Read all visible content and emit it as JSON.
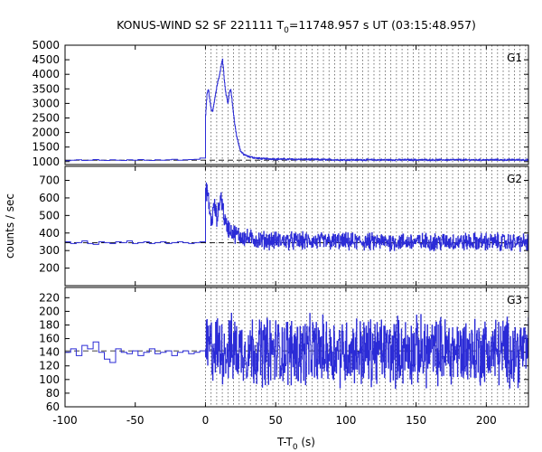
{
  "chart_data": {
    "type": "line",
    "title": "KONUS-WIND S2 SF 221111 T",
    "title_subscript": "0",
    "title_rest": "=11748.957 s UT (03:15:48.957)",
    "xlabel": "T-T",
    "xlabel_subscript": "0",
    "xlabel_unit": " (s)",
    "ylabel": "counts / sec",
    "xlim": [
      -100,
      230
    ],
    "xticks": [
      -100,
      -50,
      0,
      50,
      100,
      150,
      200
    ],
    "xtick_labels": [
      "-100",
      "-50",
      "0",
      "50",
      "100",
      "150",
      "200"
    ],
    "vline_positions": [
      0,
      4,
      8,
      12,
      16,
      20,
      24,
      28,
      32,
      36,
      40,
      44,
      48,
      52,
      56,
      60,
      64,
      68,
      72,
      76,
      80,
      84,
      88,
      92,
      96,
      100,
      104,
      108,
      112,
      116,
      120,
      124,
      128,
      132,
      136,
      140,
      144,
      148,
      152,
      156,
      160,
      164,
      168,
      172,
      176,
      180,
      184,
      188,
      192,
      196,
      200,
      204,
      208,
      212,
      216,
      220,
      224,
      228
    ],
    "line_color": "#2b2bd6",
    "panels": [
      {
        "name": "G1",
        "ylim": [
          900,
          5000
        ],
        "yticks": [
          1000,
          1500,
          2000,
          2500,
          3000,
          3500,
          4000,
          4500,
          5000
        ],
        "ytick_labels": [
          "1000",
          "1500",
          "2000",
          "2500",
          "3000",
          "3500",
          "4000",
          "4500",
          "5000"
        ],
        "background": 1050,
        "coarse_values": [
          1030,
          1050,
          1060,
          1040,
          1050,
          1070,
          1050,
          1040,
          1060,
          1050,
          1040,
          1060,
          1050,
          1070,
          1050,
          1040,
          1060,
          1050,
          1060,
          1080,
          1050,
          1060,
          1070,
          1080,
          1120
        ],
        "fine_points": [
          [
            0,
            2600
          ],
          [
            1,
            3300
          ],
          [
            2,
            3500
          ],
          [
            3,
            3100
          ],
          [
            4,
            2800
          ],
          [
            5,
            2700
          ],
          [
            6,
            3000
          ],
          [
            7,
            3300
          ],
          [
            8,
            3600
          ],
          [
            9,
            3800
          ],
          [
            10,
            4000
          ],
          [
            11,
            4300
          ],
          [
            12,
            4500
          ],
          [
            13,
            4000
          ],
          [
            14,
            3500
          ],
          [
            15,
            3200
          ],
          [
            16,
            3000
          ],
          [
            17,
            3400
          ],
          [
            18,
            3500
          ],
          [
            19,
            3000
          ],
          [
            20,
            2600
          ],
          [
            21,
            2200
          ],
          [
            22,
            1900
          ],
          [
            23,
            1700
          ],
          [
            24,
            1500
          ],
          [
            25,
            1350
          ],
          [
            27,
            1250
          ],
          [
            30,
            1180
          ],
          [
            35,
            1130
          ],
          [
            40,
            1100
          ],
          [
            50,
            1090
          ],
          [
            60,
            1080
          ],
          [
            80,
            1070
          ],
          [
            100,
            1060
          ],
          [
            130,
            1060
          ],
          [
            160,
            1060
          ],
          [
            200,
            1060
          ],
          [
            230,
            1060
          ]
        ],
        "noise_amp": 35
      },
      {
        "name": "G2",
        "ylim": [
          100,
          780
        ],
        "yticks": [
          200,
          300,
          400,
          500,
          600,
          700
        ],
        "ytick_labels": [
          "200",
          "300",
          "400",
          "500",
          "600",
          "700"
        ],
        "background": 345,
        "coarse_values": [
          350,
          340,
          345,
          355,
          340,
          335,
          350,
          345,
          340,
          350,
          345,
          355,
          340,
          345,
          350,
          340,
          345,
          350,
          340,
          345,
          350,
          345,
          340,
          345,
          350
        ],
        "fine_points": [
          [
            0,
            600
          ],
          [
            1,
            660
          ],
          [
            2,
            580
          ],
          [
            3,
            520
          ],
          [
            4,
            460
          ],
          [
            5,
            500
          ],
          [
            6,
            560
          ],
          [
            7,
            520
          ],
          [
            8,
            480
          ],
          [
            9,
            520
          ],
          [
            10,
            580
          ],
          [
            11,
            610
          ],
          [
            12,
            560
          ],
          [
            13,
            500
          ],
          [
            14,
            460
          ],
          [
            15,
            440
          ],
          [
            17,
            420
          ],
          [
            20,
            400
          ],
          [
            25,
            380
          ],
          [
            30,
            370
          ],
          [
            40,
            360
          ],
          [
            60,
            355
          ],
          [
            100,
            350
          ],
          [
            150,
            350
          ],
          [
            200,
            350
          ],
          [
            230,
            345
          ]
        ],
        "noise_amp": 60
      },
      {
        "name": "G3",
        "ylim": [
          60,
          235
        ],
        "yticks": [
          60,
          80,
          100,
          120,
          140,
          160,
          180,
          200,
          220
        ],
        "ytick_labels": [
          "60",
          "80",
          "100",
          "120",
          "140",
          "160",
          "180",
          "200",
          "220"
        ],
        "background": 142,
        "coarse_values": [
          140,
          145,
          135,
          150,
          145,
          155,
          140,
          130,
          125,
          145,
          140,
          138,
          142,
          135,
          140,
          145,
          138,
          140,
          142,
          135,
          140,
          142,
          138,
          140,
          142
        ],
        "fine_points": [
          [
            0,
            145
          ],
          [
            50,
            142
          ],
          [
            100,
            142
          ],
          [
            150,
            142
          ],
          [
            200,
            142
          ],
          [
            230,
            142
          ]
        ],
        "noise_amp": 60
      }
    ]
  }
}
